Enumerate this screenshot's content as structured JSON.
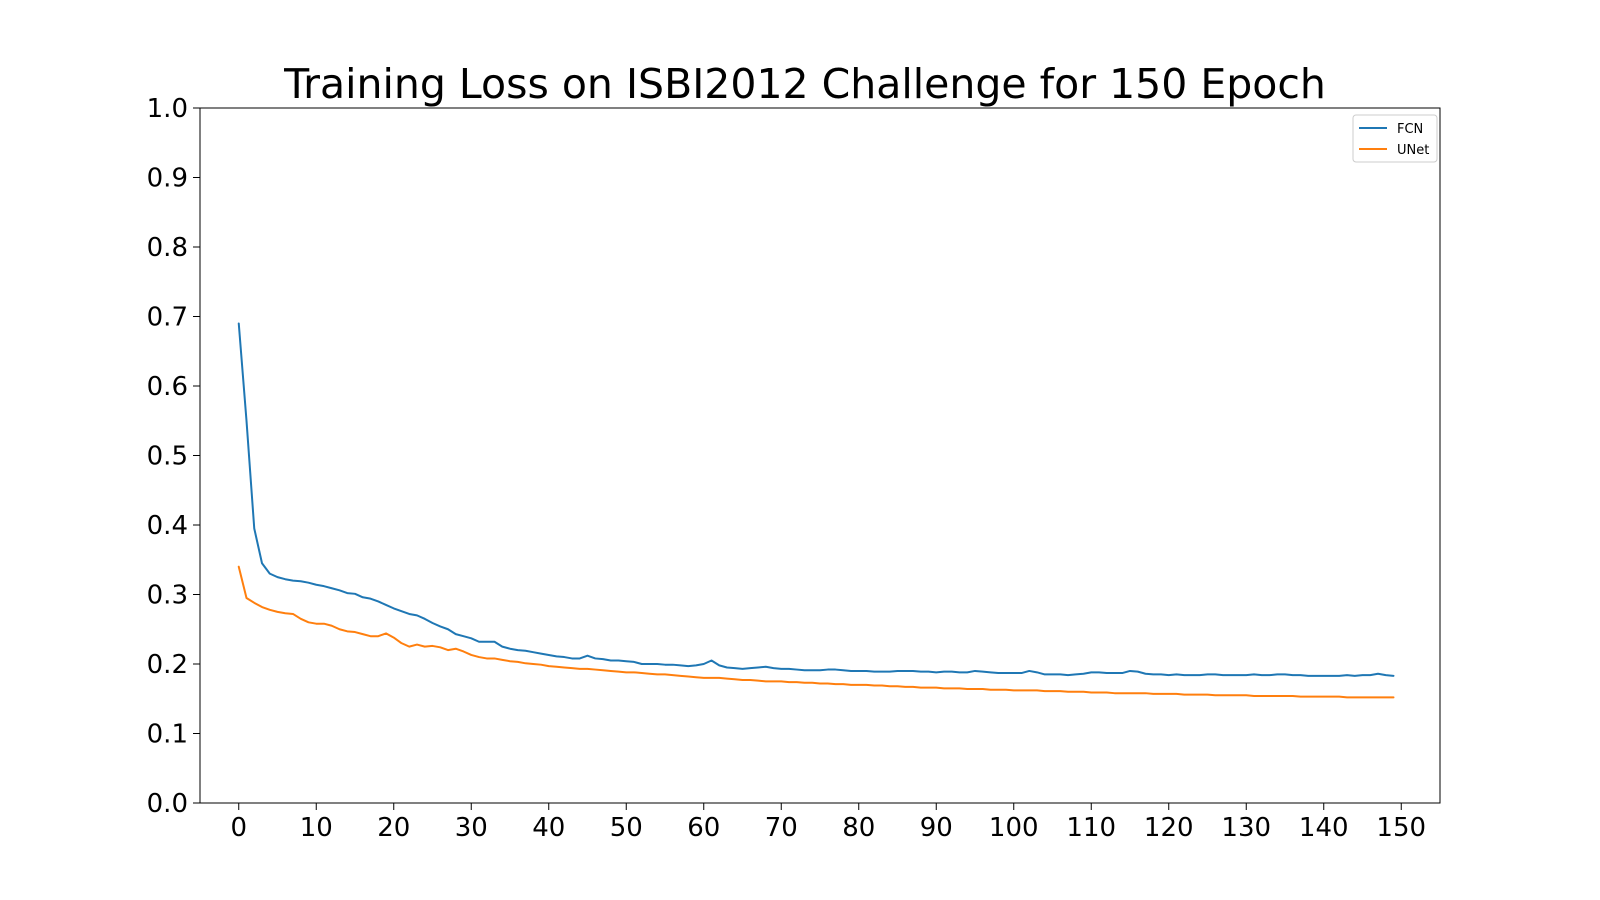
{
  "chart_data": {
    "type": "line",
    "title": "Training Loss on ISBI2012 Challenge for 150 Epoch",
    "xlabel": "",
    "ylabel": "",
    "xlim": [
      -5,
      155
    ],
    "ylim": [
      0,
      1.0
    ],
    "xticks": [
      "0",
      "10",
      "20",
      "30",
      "40",
      "50",
      "60",
      "70",
      "80",
      "90",
      "100",
      "110",
      "120",
      "130",
      "140",
      "150"
    ],
    "yticks": [
      "0.0",
      "0.1",
      "0.2",
      "0.3",
      "0.4",
      "0.5",
      "0.6",
      "0.7",
      "0.8",
      "0.9",
      "1.0"
    ],
    "grid": false,
    "legend_position": "top-right",
    "x": [
      0,
      1,
      2,
      3,
      4,
      5,
      6,
      7,
      8,
      9,
      10,
      11,
      12,
      13,
      14,
      15,
      16,
      17,
      18,
      19,
      20,
      21,
      22,
      23,
      24,
      25,
      26,
      27,
      28,
      29,
      30,
      31,
      32,
      33,
      34,
      35,
      36,
      37,
      38,
      39,
      40,
      41,
      42,
      43,
      44,
      45,
      46,
      47,
      48,
      49,
      50,
      51,
      52,
      53,
      54,
      55,
      56,
      57,
      58,
      59,
      60,
      61,
      62,
      63,
      64,
      65,
      66,
      67,
      68,
      69,
      70,
      71,
      72,
      73,
      74,
      75,
      76,
      77,
      78,
      79,
      80,
      81,
      82,
      83,
      84,
      85,
      86,
      87,
      88,
      89,
      90,
      91,
      92,
      93,
      94,
      95,
      96,
      97,
      98,
      99,
      100,
      101,
      102,
      103,
      104,
      105,
      106,
      107,
      108,
      109,
      110,
      111,
      112,
      113,
      114,
      115,
      116,
      117,
      118,
      119,
      120,
      121,
      122,
      123,
      124,
      125,
      126,
      127,
      128,
      129,
      130,
      131,
      132,
      133,
      134,
      135,
      136,
      137,
      138,
      139,
      140,
      141,
      142,
      143,
      144,
      145,
      146,
      147,
      148,
      149
    ],
    "series": [
      {
        "name": "FCN",
        "color": "#1f77b4",
        "values": [
          0.69,
          0.55,
          0.395,
          0.345,
          0.33,
          0.325,
          0.322,
          0.32,
          0.319,
          0.317,
          0.314,
          0.312,
          0.309,
          0.306,
          0.302,
          0.301,
          0.296,
          0.294,
          0.29,
          0.285,
          0.28,
          0.276,
          0.272,
          0.27,
          0.265,
          0.259,
          0.254,
          0.25,
          0.243,
          0.24,
          0.237,
          0.232,
          0.232,
          0.232,
          0.225,
          0.222,
          0.22,
          0.219,
          0.217,
          0.215,
          0.213,
          0.211,
          0.21,
          0.208,
          0.208,
          0.212,
          0.208,
          0.207,
          0.205,
          0.205,
          0.204,
          0.203,
          0.2,
          0.2,
          0.2,
          0.199,
          0.199,
          0.198,
          0.197,
          0.198,
          0.2,
          0.205,
          0.198,
          0.195,
          0.194,
          0.193,
          0.194,
          0.195,
          0.196,
          0.194,
          0.193,
          0.193,
          0.192,
          0.191,
          0.191,
          0.191,
          0.192,
          0.192,
          0.191,
          0.19,
          0.19,
          0.19,
          0.189,
          0.189,
          0.189,
          0.19,
          0.19,
          0.19,
          0.189,
          0.189,
          0.188,
          0.189,
          0.189,
          0.188,
          0.188,
          0.19,
          0.189,
          0.188,
          0.187,
          0.187,
          0.187,
          0.187,
          0.19,
          0.188,
          0.185,
          0.185,
          0.185,
          0.184,
          0.185,
          0.186,
          0.188,
          0.188,
          0.187,
          0.187,
          0.187,
          0.19,
          0.189,
          0.186,
          0.185,
          0.185,
          0.184,
          0.185,
          0.184,
          0.184,
          0.184,
          0.185,
          0.185,
          0.184,
          0.184,
          0.184,
          0.184,
          0.185,
          0.184,
          0.184,
          0.185,
          0.185,
          0.184,
          0.184,
          0.183,
          0.183,
          0.183,
          0.183,
          0.183,
          0.184,
          0.183,
          0.184,
          0.184,
          0.186,
          0.184,
          0.183
        ]
      },
      {
        "name": "UNet",
        "color": "#ff7f0e",
        "values": [
          0.34,
          0.295,
          0.288,
          0.282,
          0.278,
          0.275,
          0.273,
          0.272,
          0.265,
          0.26,
          0.258,
          0.258,
          0.255,
          0.25,
          0.247,
          0.246,
          0.243,
          0.24,
          0.24,
          0.244,
          0.238,
          0.23,
          0.225,
          0.228,
          0.225,
          0.226,
          0.224,
          0.22,
          0.222,
          0.218,
          0.213,
          0.21,
          0.208,
          0.208,
          0.206,
          0.204,
          0.203,
          0.201,
          0.2,
          0.199,
          0.197,
          0.196,
          0.195,
          0.194,
          0.193,
          0.193,
          0.192,
          0.191,
          0.19,
          0.189,
          0.188,
          0.188,
          0.187,
          0.186,
          0.185,
          0.185,
          0.184,
          0.183,
          0.182,
          0.181,
          0.18,
          0.18,
          0.18,
          0.179,
          0.178,
          0.177,
          0.177,
          0.176,
          0.175,
          0.175,
          0.175,
          0.174,
          0.174,
          0.173,
          0.173,
          0.172,
          0.172,
          0.171,
          0.171,
          0.17,
          0.17,
          0.17,
          0.169,
          0.169,
          0.168,
          0.168,
          0.167,
          0.167,
          0.166,
          0.166,
          0.166,
          0.165,
          0.165,
          0.165,
          0.164,
          0.164,
          0.164,
          0.163,
          0.163,
          0.163,
          0.162,
          0.162,
          0.162,
          0.162,
          0.161,
          0.161,
          0.161,
          0.16,
          0.16,
          0.16,
          0.159,
          0.159,
          0.159,
          0.158,
          0.158,
          0.158,
          0.158,
          0.158,
          0.157,
          0.157,
          0.157,
          0.157,
          0.156,
          0.156,
          0.156,
          0.156,
          0.155,
          0.155,
          0.155,
          0.155,
          0.155,
          0.154,
          0.154,
          0.154,
          0.154,
          0.154,
          0.154,
          0.153,
          0.153,
          0.153,
          0.153,
          0.153,
          0.153,
          0.152,
          0.152,
          0.152,
          0.152,
          0.152,
          0.152,
          0.152
        ]
      }
    ]
  }
}
